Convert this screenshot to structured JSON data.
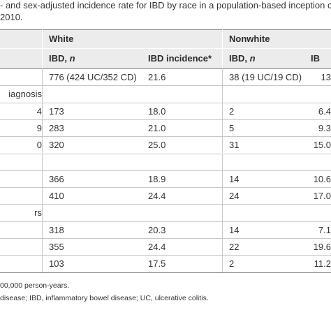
{
  "caption": {
    "line1": "- and sex-adjusted incidence rate for IBD by race in a population-based inception coh",
    "line2": " 2010."
  },
  "header": {
    "white": "White",
    "nonwhite": "Nonwhite",
    "ibd_n": "IBD, ",
    "ibd_n_italic": "n",
    "ibd_incidence": "IBD incidence*",
    "ibd_n2": "IBD, ",
    "ibd_n2_italic": "n",
    "ibd_incidence2": "IB"
  },
  "rows": [
    {
      "label": "",
      "white_n": "776 (424 UC/352 CD)",
      "white_inc": "21.6",
      "nonwhite_n": "38 (19 UC/19 CD)",
      "nonwhite_inc": "13"
    },
    {
      "label": "iagnosis",
      "section": true
    },
    {
      "label": "4",
      "white_n": "173",
      "white_inc": "18.0",
      "nonwhite_n": "2",
      "nonwhite_inc": "6.4"
    },
    {
      "label": "9",
      "white_n": "283",
      "white_inc": "21.0",
      "nonwhite_n": "5",
      "nonwhite_inc": "9.3"
    },
    {
      "label": "0",
      "white_n": "320",
      "white_inc": "25.0",
      "nonwhite_n": "31",
      "nonwhite_inc": "15.0"
    },
    {
      "label": "",
      "section": true
    },
    {
      "label": "",
      "white_n": "366",
      "white_inc": "18.9",
      "nonwhite_n": "14",
      "nonwhite_inc": "10.6"
    },
    {
      "label": "",
      "white_n": "410",
      "white_inc": "24.4",
      "nonwhite_n": "24",
      "nonwhite_inc": "17.0"
    },
    {
      "label": "rs",
      "section": true
    },
    {
      "label": "",
      "white_n": "318",
      "white_inc": "20.3",
      "nonwhite_n": "14",
      "nonwhite_inc": "7.1"
    },
    {
      "label": "",
      "white_n": "355",
      "white_inc": "24.4",
      "nonwhite_n": "22",
      "nonwhite_inc": "19.6"
    },
    {
      "label": "",
      "white_n": "103",
      "white_inc": "17.5",
      "nonwhite_n": "2",
      "nonwhite_inc": "11.2"
    }
  ],
  "footnotes": {
    "line1": "00,000 person-years.",
    "line2": "disease; IBD, inflammatory bowel disease; UC, ulcerative colitis."
  }
}
